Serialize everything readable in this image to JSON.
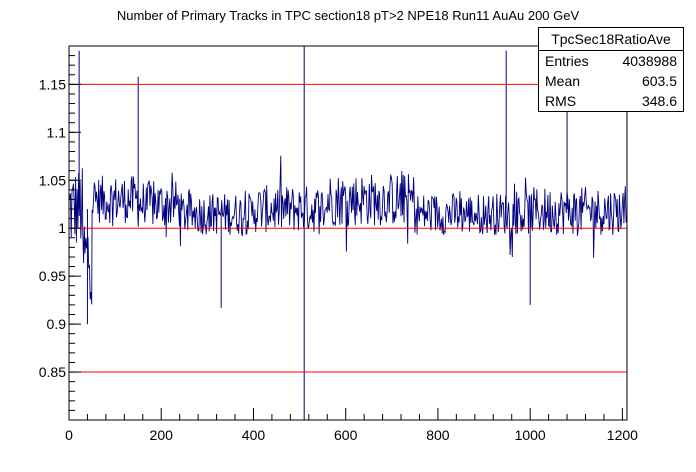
{
  "chart_data": {
    "type": "histogram",
    "title": "Number of Primary Tracks in TPC section18 pT>2 NPE18 Run11 AuAu 200 GeV",
    "xlabel": "",
    "ylabel": "",
    "xlim": [
      0,
      1210
    ],
    "ylim": [
      0.8,
      1.19
    ],
    "x_ticks": [
      0,
      200,
      400,
      600,
      800,
      1000,
      1200
    ],
    "x_tick_labels": [
      "0",
      "200",
      "400",
      "600",
      "800",
      "1000",
      "1200"
    ],
    "y_ticks": [
      0.85,
      0.9,
      0.95,
      1,
      1.05,
      1.1,
      1.15
    ],
    "y_tick_labels": [
      "0.85",
      "0.9",
      "0.95",
      "1",
      "1.05",
      "1.1",
      "1.15"
    ],
    "grid": false,
    "series_color": "#00007f",
    "reference_line_color": "#ff0000",
    "reference_lines_y": [
      0.85,
      1.0,
      1.15
    ],
    "segments": [
      {
        "x": [
          0,
          30
        ],
        "center": 1.02,
        "spread": 0.045
      },
      {
        "x": [
          30,
          50
        ],
        "center": 0.97,
        "spread": 0.05
      },
      {
        "x": [
          50,
          150
        ],
        "center": 1.03,
        "spread": 0.025
      },
      {
        "x": [
          150,
          240
        ],
        "center": 1.025,
        "spread": 0.025
      },
      {
        "x": [
          240,
          400
        ],
        "center": 1.015,
        "spread": 0.022
      },
      {
        "x": [
          400,
          560
        ],
        "center": 1.02,
        "spread": 0.025
      },
      {
        "x": [
          560,
          750
        ],
        "center": 1.03,
        "spread": 0.028
      },
      {
        "x": [
          750,
          1000
        ],
        "center": 1.015,
        "spread": 0.022
      },
      {
        "x": [
          1000,
          1210
        ],
        "center": 1.018,
        "spread": 0.025
      }
    ],
    "spikes": [
      {
        "x": 22,
        "y": 1.185
      },
      {
        "x": 150,
        "y": 1.158
      },
      {
        "x": 510,
        "y": 0.8
      },
      {
        "x": 510,
        "y": 1.19
      },
      {
        "x": 948,
        "y": 1.185
      },
      {
        "x": 1080,
        "y": 1.19
      },
      {
        "x": 40,
        "y": 0.9
      },
      {
        "x": 330,
        "y": 0.917
      },
      {
        "x": 1000,
        "y": 0.92
      }
    ]
  },
  "stats": {
    "title": "TpcSec18RatioAve",
    "rows": [
      {
        "label": "Entries",
        "value": "4038988"
      },
      {
        "label": "Mean",
        "value": "603.5"
      },
      {
        "label": "RMS",
        "value": "348.6"
      }
    ]
  }
}
